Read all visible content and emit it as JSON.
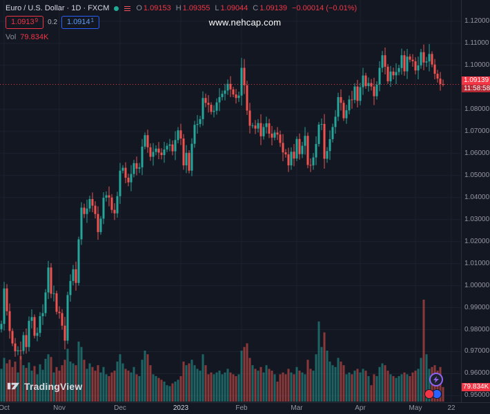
{
  "legend": {
    "title": "Euro / U.S. Dollar · 1D · FXCM",
    "ohlc": [
      {
        "label": "O",
        "value": "1.09153"
      },
      {
        "label": "H",
        "value": "1.09355"
      },
      {
        "label": "L",
        "value": "1.09044"
      },
      {
        "label": "C",
        "value": "1.09139"
      }
    ],
    "change": "−0.00014 (−0.01%)",
    "sell_price": {
      "main": "1.0913",
      "sup": "9"
    },
    "spread": "0.2",
    "buy_price": {
      "main": "1.0914",
      "sup": "1"
    },
    "volume_row": {
      "label": "Vol",
      "value": "79.834K"
    }
  },
  "watermark": "www.nehcap.com",
  "price_axis": {
    "price_tag": {
      "price": "1.09139",
      "countdown": "11:58:58"
    },
    "volume_tag": "79.834K"
  },
  "footer": {
    "logo_text": "TradingView"
  },
  "colors": {
    "bg": "#131722",
    "grid": "#1c2130",
    "up": "#26a69a",
    "down": "#ef5350",
    "accent_red": "#f23645",
    "accent_blue": "#2962ff",
    "axis_text": "#9598a1"
  },
  "chart_data": {
    "type": "candlestick",
    "title": "Euro / U.S. Dollar · 1D · FXCM",
    "symbol": "EUR/USD",
    "timeframe": "1D",
    "exchange": "FXCM",
    "ylim": [
      0.947,
      1.1297
    ],
    "y_ticks": [
      "1.12000",
      "1.11000",
      "1.10000",
      "1.08000",
      "1.07000",
      "1.06000",
      "1.05000",
      "1.04000",
      "1.03000",
      "1.02000",
      "1.01000",
      "1.00000",
      "0.99000",
      "0.98000",
      "0.97000",
      "0.96000",
      "0.95000"
    ],
    "x_ticks": [
      {
        "text": "Oct",
        "slot": 1
      },
      {
        "text": "Nov",
        "slot": 21
      },
      {
        "text": "Dec",
        "slot": 43
      },
      {
        "text": "2023",
        "slot": 65,
        "emphasis": true
      },
      {
        "text": "Feb",
        "slot": 87
      },
      {
        "text": "Mar",
        "slot": 107
      },
      {
        "text": "Apr",
        "slot": 130
      },
      {
        "text": "May",
        "slot": 150
      },
      {
        "text": "22",
        "slot": 163
      }
    ],
    "total_slots": 167,
    "last_price": 1.09139,
    "countdown": "11:58:58",
    "volume_unit": "K",
    "encoding": "candles entries are [close, wick, volume_in_K]; open = previous close (first_open for the first candle); high = max(open,close)+wick; low = min(open,close)-wick; final candle OHLC overridden by 'last'",
    "first_open": 0.9802,
    "last": {
      "open": 1.09153,
      "high": 1.09355,
      "low": 1.09044,
      "close": 1.09139,
      "volume_k": 79.834
    },
    "candles": [
      [
        0.9826,
        0.0015,
        180
      ],
      [
        0.9987,
        0.003,
        240
      ],
      [
        0.9884,
        0.002,
        210
      ],
      [
        0.9794,
        0.0035,
        230
      ],
      [
        0.9737,
        0.0012,
        190
      ],
      [
        0.9702,
        0.0025,
        220
      ],
      [
        0.9706,
        0.0018,
        160
      ],
      [
        0.9703,
        0.004,
        250
      ],
      [
        0.9775,
        0.0015,
        200
      ],
      [
        0.9721,
        0.003,
        185
      ],
      [
        0.984,
        0.002,
        215
      ],
      [
        0.9857,
        0.0035,
        170
      ],
      [
        0.9772,
        0.0012,
        195
      ],
      [
        0.9785,
        0.0025,
        150
      ],
      [
        0.9861,
        0.0018,
        205
      ],
      [
        0.9875,
        0.004,
        175
      ],
      [
        0.9969,
        0.0015,
        235
      ],
      [
        1.0082,
        0.003,
        260
      ],
      [
        0.9963,
        0.002,
        245
      ],
      [
        0.9965,
        0.0035,
        160
      ],
      [
        0.9881,
        0.0012,
        190
      ],
      [
        0.9875,
        0.0025,
        170
      ],
      [
        0.9818,
        0.0018,
        200
      ],
      [
        0.975,
        0.004,
        230
      ],
      [
        0.9957,
        0.0015,
        290
      ],
      [
        1.0021,
        0.003,
        220
      ],
      [
        1.0074,
        0.002,
        210
      ],
      [
        1.0012,
        0.0035,
        200
      ],
      [
        1.021,
        0.0012,
        330
      ],
      [
        1.0354,
        0.0025,
        300
      ],
      [
        1.0325,
        0.0018,
        230
      ],
      [
        1.035,
        0.004,
        180
      ],
      [
        1.0393,
        0.0015,
        210
      ],
      [
        1.0363,
        0.003,
        190
      ],
      [
        1.0325,
        0.002,
        170
      ],
      [
        1.0243,
        0.0035,
        200
      ],
      [
        1.0304,
        0.0012,
        160
      ],
      [
        1.0399,
        0.0025,
        190
      ],
      [
        1.041,
        0.0018,
        150
      ],
      [
        1.04,
        0.004,
        140
      ],
      [
        1.0344,
        0.0015,
        160
      ],
      [
        1.0328,
        0.003,
        170
      ],
      [
        1.0406,
        0.002,
        220
      ],
      [
        1.0522,
        0.0035,
        260
      ],
      [
        1.0535,
        0.0012,
        210
      ],
      [
        1.049,
        0.0025,
        180
      ],
      [
        1.0469,
        0.0018,
        170
      ],
      [
        1.0507,
        0.004,
        160
      ],
      [
        1.0556,
        0.0015,
        190
      ],
      [
        1.0531,
        0.003,
        150
      ],
      [
        1.0537,
        0.002,
        140
      ],
      [
        1.0631,
        0.0035,
        230
      ],
      [
        1.0683,
        0.0012,
        280
      ],
      [
        1.0628,
        0.0025,
        260
      ],
      [
        1.0585,
        0.0018,
        200
      ],
      [
        1.0607,
        0.004,
        150
      ],
      [
        1.0622,
        0.0015,
        140
      ],
      [
        1.0604,
        0.003,
        130
      ],
      [
        1.0593,
        0.002,
        120
      ],
      [
        1.0618,
        0.0035,
        110
      ],
      [
        1.0635,
        0.0012,
        90
      ],
      [
        1.0641,
        0.0025,
        85
      ],
      [
        1.061,
        0.0018,
        100
      ],
      [
        1.0661,
        0.004,
        110
      ],
      [
        1.0705,
        0.0015,
        120
      ],
      [
        1.0668,
        0.003,
        140
      ],
      [
        1.0546,
        0.002,
        220
      ],
      [
        1.0603,
        0.0035,
        200
      ],
      [
        1.0522,
        0.0012,
        210
      ],
      [
        1.0644,
        0.0025,
        230
      ],
      [
        1.073,
        0.0018,
        200
      ],
      [
        1.0734,
        0.004,
        180
      ],
      [
        1.0756,
        0.0015,
        170
      ],
      [
        1.0852,
        0.003,
        260
      ],
      [
        1.083,
        0.002,
        200
      ],
      [
        1.0821,
        0.0035,
        150
      ],
      [
        1.0789,
        0.0012,
        160
      ],
      [
        1.0794,
        0.0025,
        150
      ],
      [
        1.0832,
        0.0018,
        160
      ],
      [
        1.0856,
        0.004,
        170
      ],
      [
        1.0871,
        0.0015,
        150
      ],
      [
        1.0886,
        0.003,
        160
      ],
      [
        1.0916,
        0.002,
        180
      ],
      [
        1.0891,
        0.0035,
        160
      ],
      [
        1.0868,
        0.0012,
        150
      ],
      [
        1.0852,
        0.0025,
        140
      ],
      [
        1.0863,
        0.0018,
        150
      ],
      [
        1.0989,
        0.0045,
        280
      ],
      [
        1.091,
        0.004,
        300
      ],
      [
        1.0795,
        0.002,
        320
      ],
      [
        1.0726,
        0.0035,
        240
      ],
      [
        1.0727,
        0.0012,
        200
      ],
      [
        1.0713,
        0.0025,
        180
      ],
      [
        1.0738,
        0.0018,
        170
      ],
      [
        1.0678,
        0.004,
        190
      ],
      [
        1.072,
        0.0015,
        160
      ],
      [
        1.0737,
        0.003,
        200
      ],
      [
        1.069,
        0.002,
        180
      ],
      [
        1.0672,
        0.0035,
        170
      ],
      [
        1.0695,
        0.0012,
        150
      ],
      [
        1.0686,
        0.0025,
        110
      ],
      [
        1.0648,
        0.0018,
        150
      ],
      [
        1.0605,
        0.004,
        160
      ],
      [
        1.0596,
        0.0015,
        150
      ],
      [
        1.0546,
        0.003,
        180
      ],
      [
        1.0608,
        0.002,
        160
      ],
      [
        1.0577,
        0.0035,
        150
      ],
      [
        1.0666,
        0.0012,
        190
      ],
      [
        1.0597,
        0.0025,
        170
      ],
      [
        1.0635,
        0.0018,
        160
      ],
      [
        1.068,
        0.004,
        150
      ],
      [
        1.0548,
        0.0015,
        230
      ],
      [
        1.0546,
        0.003,
        180
      ],
      [
        1.0582,
        0.002,
        170
      ],
      [
        1.0643,
        0.0035,
        260
      ],
      [
        1.0731,
        0.0012,
        440
      ],
      [
        1.0734,
        0.0025,
        300
      ],
      [
        1.0576,
        0.0045,
        380
      ],
      [
        1.0611,
        0.0018,
        280
      ],
      [
        1.0665,
        0.004,
        220
      ],
      [
        1.072,
        0.0015,
        200
      ],
      [
        1.0767,
        0.003,
        190
      ],
      [
        1.0856,
        0.002,
        240
      ],
      [
        1.083,
        0.0035,
        220
      ],
      [
        1.076,
        0.0012,
        200
      ],
      [
        1.0796,
        0.0025,
        150
      ],
      [
        1.0845,
        0.0018,
        160
      ],
      [
        1.0843,
        0.004,
        150
      ],
      [
        1.0904,
        0.0015,
        170
      ],
      [
        1.0839,
        0.003,
        180
      ],
      [
        1.0901,
        0.002,
        160
      ],
      [
        1.0954,
        0.0035,
        180
      ],
      [
        1.0906,
        0.0012,
        170
      ],
      [
        1.092,
        0.0025,
        140
      ],
      [
        1.0904,
        0.0018,
        90
      ],
      [
        1.086,
        0.004,
        150
      ],
      [
        1.0913,
        0.0015,
        140
      ],
      [
        1.0989,
        0.003,
        190
      ],
      [
        1.1046,
        0.002,
        210
      ],
      [
        1.0994,
        0.0035,
        200
      ],
      [
        1.0928,
        0.0012,
        170
      ],
      [
        1.0972,
        0.0025,
        150
      ],
      [
        1.0955,
        0.0018,
        140
      ],
      [
        1.097,
        0.004,
        130
      ],
      [
        1.0988,
        0.0015,
        140
      ],
      [
        1.1046,
        0.003,
        150
      ],
      [
        1.0973,
        0.002,
        160
      ],
      [
        1.104,
        0.0035,
        150
      ],
      [
        1.1026,
        0.0012,
        140
      ],
      [
        1.1019,
        0.0025,
        160
      ],
      [
        1.0977,
        0.0018,
        170
      ],
      [
        1.1,
        0.004,
        180
      ],
      [
        1.106,
        0.0015,
        240
      ],
      [
        1.1013,
        0.0035,
        560
      ],
      [
        1.1018,
        0.002,
        260
      ],
      [
        1.1052,
        0.0045,
        180
      ],
      [
        1.1004,
        0.0012,
        190
      ],
      [
        1.0962,
        0.0025,
        200
      ],
      [
        1.094,
        0.0018,
        170
      ],
      [
        1.09153,
        0.003,
        190
      ],
      [
        1.09139,
        0.001,
        79.834
      ]
    ]
  }
}
